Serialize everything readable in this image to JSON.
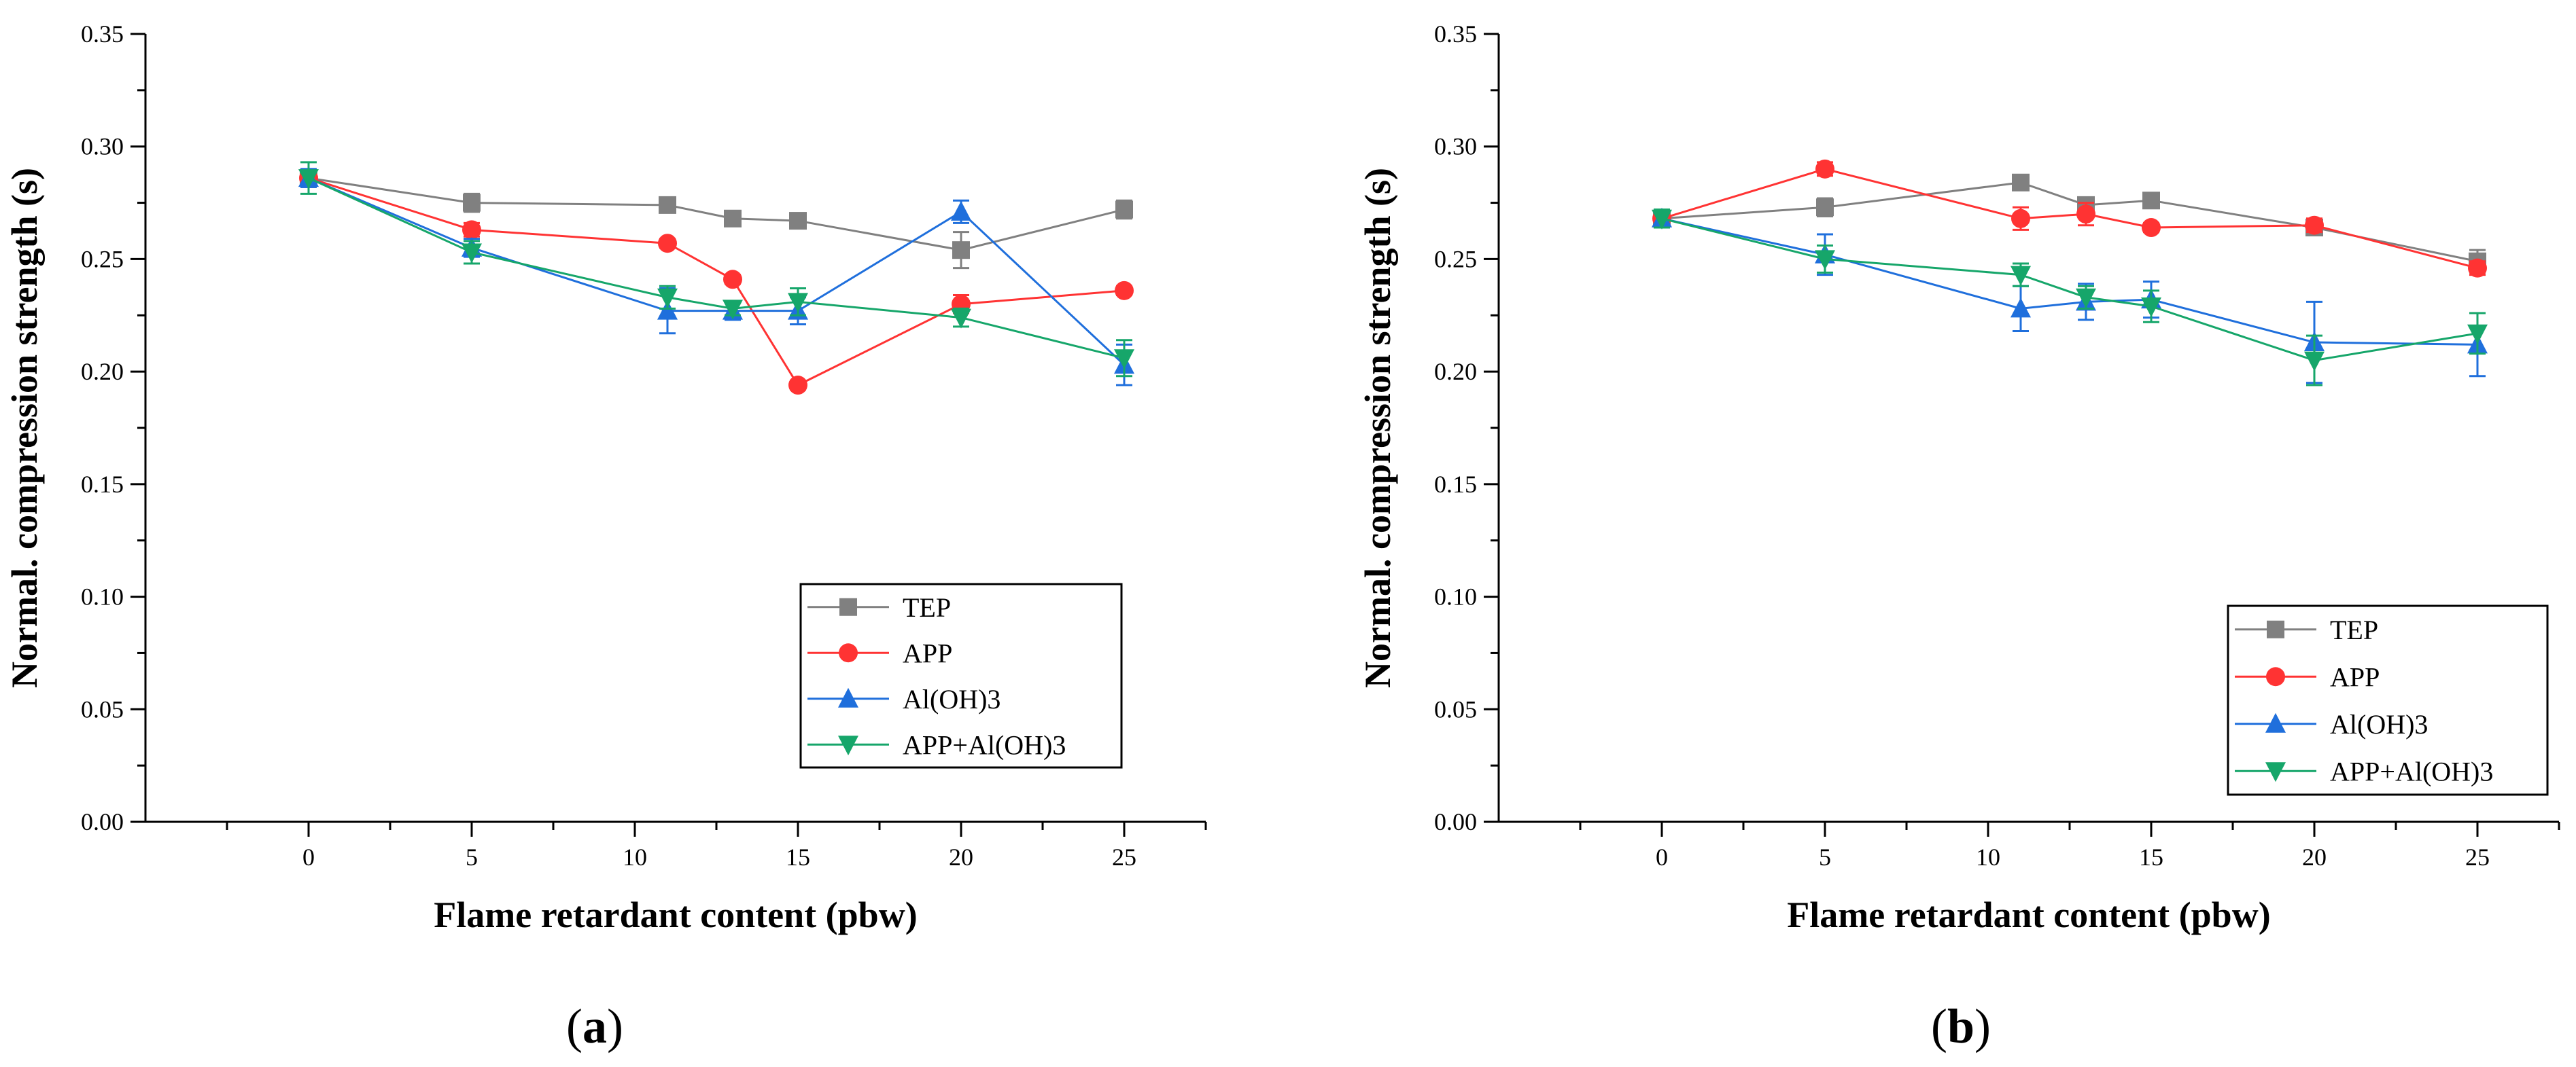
{
  "chart_data": [
    {
      "type": "line",
      "panel_label": "a",
      "xlabel": "Flame retardant content (pbw)",
      "ylabel": "Normal. compression strength (s)",
      "xlim": [
        -5,
        27.5
      ],
      "ylim": [
        0,
        0.35
      ],
      "xticks": [
        0,
        5,
        10,
        15,
        20,
        25
      ],
      "yticks": [
        0,
        0.05,
        0.1,
        0.15,
        0.2,
        0.25,
        0.3,
        0.35
      ],
      "ytick_labels": [
        "0.00",
        "0.05",
        "0.10",
        "0.15",
        "0.20",
        "0.25",
        "0.30",
        "0.35"
      ],
      "legend_position": "bottom-right",
      "series": [
        {
          "name": "TEP",
          "color": "#808080",
          "marker": "square",
          "x": [
            0,
            5,
            11,
            13,
            15,
            20,
            25
          ],
          "y": [
            0.286,
            0.275,
            0.274,
            0.268,
            0.267,
            0.254,
            0.272
          ],
          "err": [
            0.004,
            0.004,
            0.003,
            0.002,
            0.003,
            0.008,
            0.004
          ]
        },
        {
          "name": "APP",
          "color": "#ff3333",
          "marker": "circle",
          "x": [
            0,
            5,
            11,
            13,
            15,
            20,
            25
          ],
          "y": [
            0.286,
            0.263,
            0.257,
            0.241,
            0.194,
            0.23,
            0.236
          ],
          "err": [
            0.003,
            0.003,
            0.002,
            0.002,
            0.002,
            0.004,
            0.002
          ]
        },
        {
          "name": "Al(OH)3",
          "color": "#1f6fdc",
          "marker": "triangle-up",
          "x": [
            0,
            5,
            11,
            13,
            15,
            20,
            25
          ],
          "y": [
            0.286,
            0.255,
            0.227,
            0.227,
            0.227,
            0.271,
            0.203
          ],
          "err": [
            0.004,
            0.004,
            0.01,
            0.004,
            0.006,
            0.005,
            0.009
          ]
        },
        {
          "name": "APP+Al(OH)3",
          "color": "#16a66a",
          "marker": "triangle-down",
          "x": [
            0,
            5,
            11,
            13,
            15,
            20,
            25
          ],
          "y": [
            0.286,
            0.253,
            0.233,
            0.228,
            0.231,
            0.224,
            0.206
          ],
          "err": [
            0.007,
            0.005,
            0.005,
            0.003,
            0.006,
            0.004,
            0.008
          ]
        }
      ]
    },
    {
      "type": "line",
      "panel_label": "b",
      "xlabel": "Flame retardant content (pbw)",
      "ylabel": "Normal. compression strength (s)",
      "xlim": [
        -5,
        27.5
      ],
      "ylim": [
        0,
        0.35
      ],
      "xticks": [
        0,
        5,
        10,
        15,
        20,
        25
      ],
      "yticks": [
        0,
        0.05,
        0.1,
        0.15,
        0.2,
        0.25,
        0.3,
        0.35
      ],
      "ytick_labels": [
        "0.00",
        "0.05",
        "0.10",
        "0.15",
        "0.20",
        "0.25",
        "0.30",
        "0.35"
      ],
      "legend_position": "bottom-right",
      "series": [
        {
          "name": "TEP",
          "color": "#808080",
          "marker": "square",
          "x": [
            0,
            5,
            11,
            13,
            15,
            20,
            25
          ],
          "y": [
            0.268,
            0.273,
            0.284,
            0.274,
            0.276,
            0.264,
            0.249
          ],
          "err": [
            0.003,
            0.004,
            0.002,
            0.003,
            0.002,
            0.003,
            0.005
          ]
        },
        {
          "name": "APP",
          "color": "#ff3333",
          "marker": "circle",
          "x": [
            0,
            5,
            11,
            13,
            15,
            20,
            25
          ],
          "y": [
            0.268,
            0.29,
            0.268,
            0.27,
            0.264,
            0.265,
            0.246
          ],
          "err": [
            0.003,
            0.003,
            0.005,
            0.005,
            0.002,
            0.003,
            0.003
          ]
        },
        {
          "name": "Al(OH)3",
          "color": "#1f6fdc",
          "marker": "triangle-up",
          "x": [
            0,
            5,
            11,
            13,
            15,
            20,
            25
          ],
          "y": [
            0.268,
            0.252,
            0.228,
            0.231,
            0.232,
            0.213,
            0.212
          ],
          "err": [
            0.003,
            0.009,
            0.01,
            0.008,
            0.008,
            0.018,
            0.014
          ]
        },
        {
          "name": "APP+Al(OH)3",
          "color": "#16a66a",
          "marker": "triangle-down",
          "x": [
            0,
            5,
            11,
            13,
            15,
            20,
            25
          ],
          "y": [
            0.268,
            0.25,
            0.243,
            0.233,
            0.229,
            0.205,
            0.217
          ],
          "err": [
            0.004,
            0.006,
            0.005,
            0.005,
            0.007,
            0.011,
            0.009
          ]
        }
      ]
    }
  ],
  "captions": {
    "a": {
      "open": "(",
      "letter": "a",
      "close": ")"
    },
    "b": {
      "open": "(",
      "letter": "b",
      "close": ")"
    }
  }
}
